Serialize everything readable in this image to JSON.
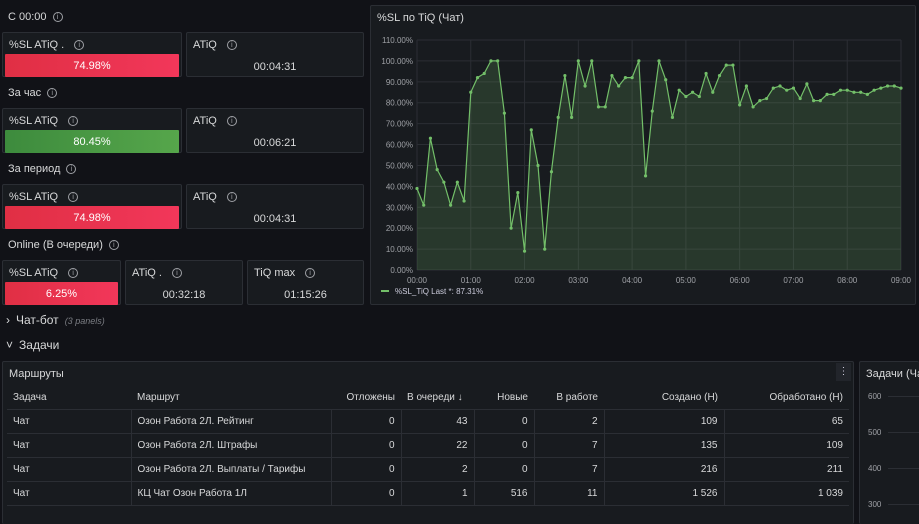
{
  "sections": {
    "since": "С 00:00",
    "per_hour": "За час",
    "per_period": "За период",
    "online": "Online (В очереди)",
    "chatbot": "Чат-бот",
    "chatbot_hint": "(3 panels)",
    "tasks": "Задачи"
  },
  "stats": {
    "since": {
      "sl_title": "%SL ATiQ .",
      "sl_value": "74.98%",
      "sl_color": "#e02f44",
      "atiq_title": "ATiQ",
      "atiq_value": "00:04:31"
    },
    "hour": {
      "sl_title": "%SL ATiQ",
      "sl_value": "80.45%",
      "sl_color": "#56a64b",
      "atiq_title": "ATiQ",
      "atiq_value": "00:06:21"
    },
    "period": {
      "sl_title": "%SL ATiQ",
      "sl_value": "74.98%",
      "sl_color": "#e02f44",
      "atiq_title": "ATiQ",
      "atiq_value": "00:04:31"
    },
    "online": {
      "sl_title": "%SL ATiQ",
      "sl_value": "6.25%",
      "sl_color": "#e02f44",
      "atiq_title": "ATiQ .",
      "atiq_value": "00:32:18",
      "tiq_title": "TiQ max",
      "tiq_value": "01:15:26"
    }
  },
  "chart_data": {
    "type": "area",
    "title": "%SL по TiQ (Чат)",
    "x_ticks": [
      "00:00",
      "01:00",
      "02:00",
      "03:00",
      "04:00",
      "05:00",
      "06:00",
      "07:00",
      "08:00",
      "09:00"
    ],
    "y_ticks": [
      "0.00%",
      "10.00%",
      "20.00%",
      "30.00%",
      "40.00%",
      "50.00%",
      "60.00%",
      "70.00%",
      "80.00%",
      "90.00%",
      "100.00%",
      "110.00%"
    ],
    "ylim": [
      0,
      110
    ],
    "xlim_hours": [
      0,
      9
    ],
    "series": [
      {
        "name": "%SL_TiQ",
        "color": "#73bf69",
        "legend_suffix": "Last *: 87.31%",
        "x_hours": [
          0.0,
          0.125,
          0.25,
          0.375,
          0.5,
          0.625,
          0.75,
          0.875,
          1.0,
          1.125,
          1.25,
          1.375,
          1.5,
          1.625,
          1.75,
          1.875,
          2.0,
          2.125,
          2.25,
          2.375,
          2.5,
          2.625,
          2.75,
          2.875,
          3.0,
          3.125,
          3.25,
          3.375,
          3.5,
          3.625,
          3.75,
          3.875,
          4.0,
          4.125,
          4.25,
          4.375,
          4.5,
          4.625,
          4.75,
          4.875,
          5.0,
          5.125,
          5.25,
          5.375,
          5.5,
          5.625,
          5.75,
          5.875,
          6.0,
          6.125,
          6.25,
          6.375,
          6.5,
          6.625,
          6.75,
          6.875,
          7.0,
          7.125,
          7.25,
          7.375,
          7.5,
          7.625,
          7.75,
          7.875,
          8.0,
          8.125,
          8.25,
          8.375,
          8.5,
          8.625,
          8.75,
          8.875,
          9.0
        ],
        "values": [
          39,
          31,
          63,
          48,
          42,
          31,
          42,
          33,
          85,
          92,
          94,
          100,
          100,
          75,
          20,
          37,
          9,
          67,
          50,
          10,
          47,
          73,
          93,
          73,
          100,
          88,
          100,
          78,
          78,
          93,
          88,
          92,
          92,
          100,
          45,
          76,
          100,
          91,
          73,
          86,
          83,
          85,
          83,
          94,
          85,
          93,
          98,
          98,
          79,
          88,
          78,
          81,
          82,
          87,
          88,
          86,
          87,
          82,
          89,
          81,
          81,
          84,
          84,
          86,
          86,
          85,
          85,
          84,
          86,
          87,
          88,
          88,
          87
        ]
      }
    ]
  },
  "routes_panel": {
    "title": "Маршруты",
    "columns": [
      "Задача",
      "Маршрут",
      "Отложены",
      "В очереди",
      "Новые",
      "В работе",
      "Создано (Н)",
      "Обработано (Н)"
    ],
    "sort_icon": "arrow-down-icon",
    "rows": [
      [
        "Чат",
        "Озон Работа 2Л. Рейтинг",
        "0",
        "43",
        "0",
        "2",
        "109",
        "65"
      ],
      [
        "Чат",
        "Озон Работа 2Л. Штрафы",
        "0",
        "22",
        "0",
        "7",
        "135",
        "109"
      ],
      [
        "Чат",
        "Озон Работа 2Л. Выплаты / Тарифы",
        "0",
        "2",
        "0",
        "7",
        "216",
        "211"
      ],
      [
        "Чат",
        "КЦ Чат Озон Работа 1Л",
        "0",
        "1",
        "516",
        "11",
        "1 526",
        "1 039"
      ]
    ]
  },
  "tasks_panel": {
    "title": "Задачи (Чат",
    "y_ticks": [
      "600",
      "500",
      "400",
      "300"
    ]
  }
}
